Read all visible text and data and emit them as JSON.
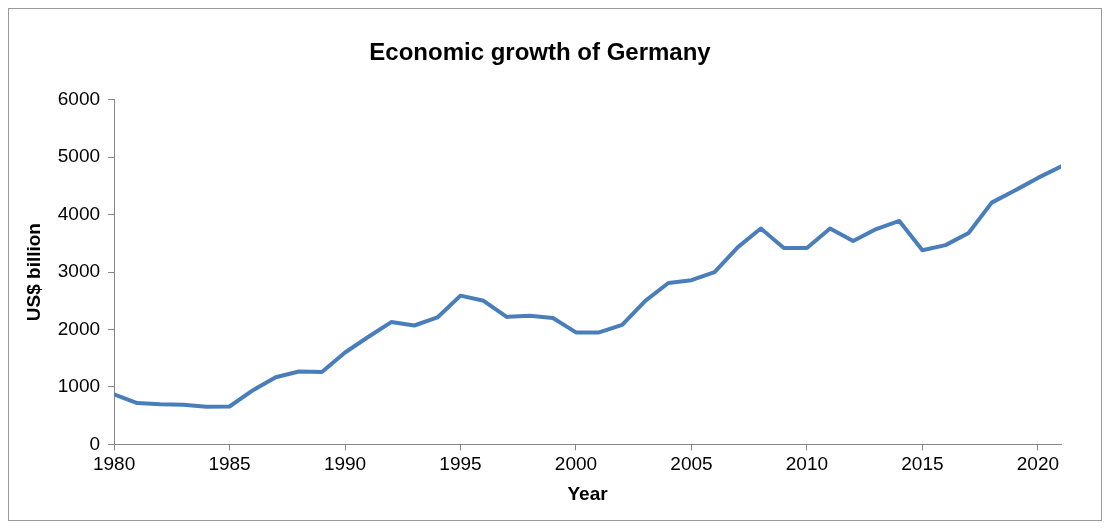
{
  "chart_data": {
    "type": "line",
    "title": "Economic growth of Germany",
    "xlabel": "Year",
    "ylabel": "US$ billion",
    "x": [
      1980,
      1981,
      1982,
      1983,
      1984,
      1985,
      1986,
      1987,
      1988,
      1989,
      1990,
      1991,
      1992,
      1993,
      1994,
      1995,
      1996,
      1997,
      1998,
      1999,
      2000,
      2001,
      2002,
      2003,
      2004,
      2005,
      2006,
      2007,
      2008,
      2009,
      2010,
      2011,
      2012,
      2013,
      2014,
      2015,
      2016,
      2017,
      2018,
      2019,
      2020,
      2021
    ],
    "series": [
      {
        "color": "#4a7ebb",
        "values": [
          870,
          720,
          700,
          690,
          655,
          660,
          940,
          1170,
          1270,
          1260,
          1600,
          1870,
          2130,
          2070,
          2210,
          2590,
          2500,
          2220,
          2240,
          2200,
          1950,
          1950,
          2080,
          2500,
          2810,
          2860,
          3000,
          3430,
          3760,
          3420,
          3420,
          3760,
          3540,
          3750,
          3890,
          3380,
          3470,
          3680,
          4210,
          4420,
          4640,
          4840
        ]
      }
    ],
    "xlim": [
      1980,
      2021
    ],
    "xticks": [
      1980,
      1985,
      1990,
      1995,
      2000,
      2005,
      2010,
      2015,
      2020
    ],
    "ylim": [
      0,
      6000
    ],
    "yticks": [
      0,
      1000,
      2000,
      3000,
      4000,
      5000,
      6000
    ],
    "grid": false,
    "legend": false,
    "marker": "none",
    "line_style": "solid"
  }
}
